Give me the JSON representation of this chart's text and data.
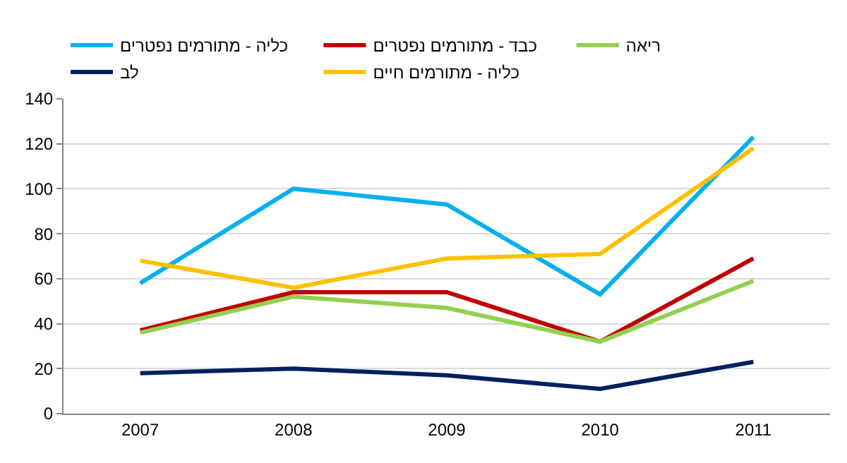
{
  "chart_data": {
    "type": "line",
    "categories": [
      "2007",
      "2008",
      "2009",
      "2010",
      "2011"
    ],
    "series": [
      {
        "name": "כליה - מתורמים נפטרים",
        "color": "#00b0f0",
        "values": [
          58,
          100,
          93,
          53,
          123
        ]
      },
      {
        "name": "כבד - מתורמים נפטרים",
        "color": "#c00000",
        "values": [
          37,
          54,
          54,
          32,
          69
        ]
      },
      {
        "name": "ריאה",
        "color": "#92d050",
        "values": [
          36,
          52,
          47,
          32,
          59
        ]
      },
      {
        "name": "לב",
        "color": "#002060",
        "values": [
          18,
          20,
          17,
          11,
          23
        ]
      },
      {
        "name": "כליה - מתורמים חיים",
        "color": "#ffc000",
        "values": [
          68,
          56,
          69,
          71,
          118
        ]
      }
    ],
    "ylim": [
      0,
      140
    ],
    "yticks": [
      0,
      20,
      40,
      60,
      80,
      100,
      120,
      140
    ],
    "grid": "y",
    "legend": "top",
    "marker": "none",
    "line_style": "solid"
  }
}
